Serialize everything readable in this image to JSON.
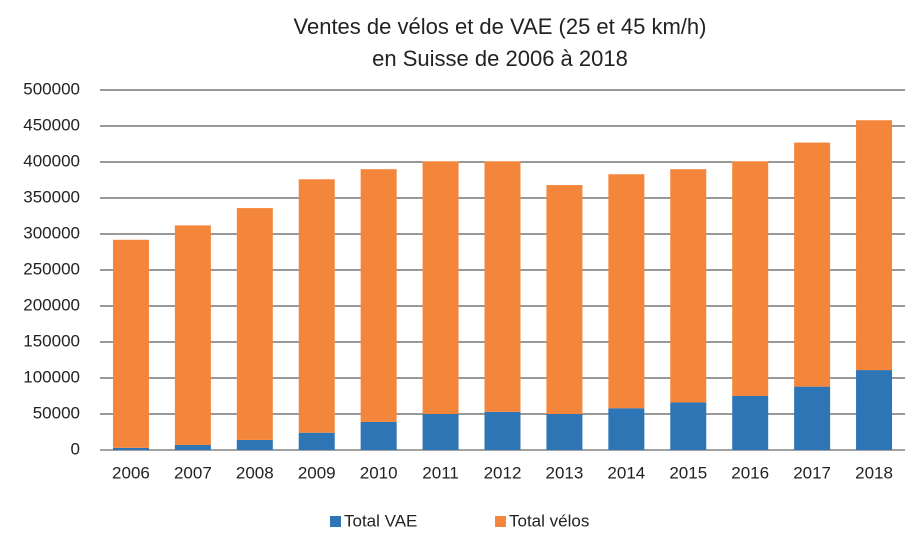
{
  "chart_data": {
    "type": "stacked_bar",
    "title": [
      "Ventes de vélos et de VAE (25 et 45 km/h)",
      "en Suisse de 2006 à 2018"
    ],
    "categories": [
      "2006",
      "2007",
      "2008",
      "2009",
      "2010",
      "2011",
      "2012",
      "2013",
      "2014",
      "2015",
      "2016",
      "2017",
      "2018"
    ],
    "series": [
      {
        "name": "Total VAE",
        "color": "#2e75b6",
        "values": [
          3000,
          7000,
          14000,
          24000,
          39000,
          50000,
          53000,
          50000,
          58000,
          66000,
          75000,
          88000,
          111000
        ]
      },
      {
        "name": "Total vélos",
        "color": "#f4863c",
        "values": [
          289000,
          305000,
          322000,
          352000,
          351000,
          351000,
          348000,
          318000,
          325000,
          324000,
          326000,
          339000,
          347000
        ]
      }
    ],
    "ylim": [
      0,
      500000
    ],
    "yticks": [
      0,
      50000,
      100000,
      150000,
      200000,
      250000,
      300000,
      350000,
      400000,
      450000,
      500000
    ],
    "grid": true
  }
}
